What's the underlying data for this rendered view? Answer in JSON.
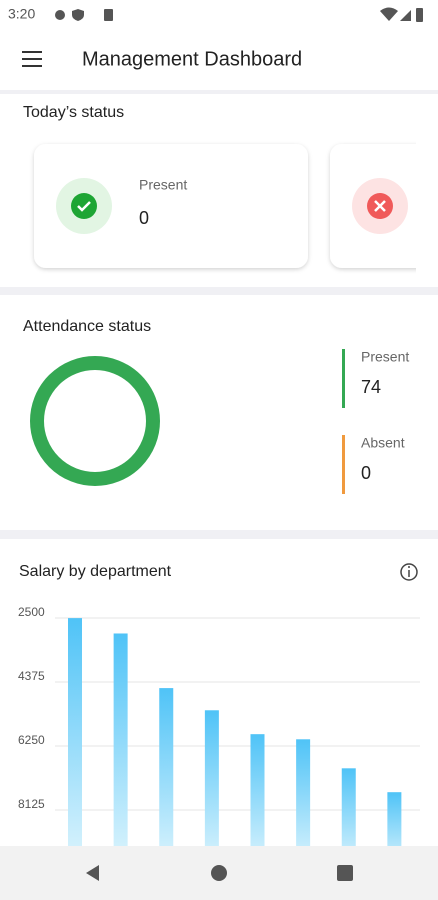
{
  "status_bar": {
    "time": "3:20"
  },
  "app_bar": {
    "title": "Management Dashboard"
  },
  "today_status": {
    "title": "Today’s status",
    "cards": [
      {
        "label": "Present",
        "value": 0
      }
    ]
  },
  "chart_data": [
    {
      "type": "donut",
      "title": "Attendance status",
      "categories": [
        "Present",
        "Absent"
      ],
      "values": [
        74,
        0
      ],
      "colors": [
        "#34a853",
        "#f09a3e"
      ]
    },
    {
      "type": "bar",
      "title": "Salary by department",
      "categories": [
        null,
        null,
        null,
        null,
        null,
        null,
        null,
        null
      ],
      "values": [
        2650,
        3100,
        4700,
        5350,
        6050,
        6200,
        7050,
        7750
      ],
      "color": "#4fc3f7",
      "ylim": [
        2500,
        10000
      ],
      "yticks": [
        2500,
        4375,
        6250,
        8125
      ],
      "y_inverted": true,
      "grid": true
    }
  ]
}
